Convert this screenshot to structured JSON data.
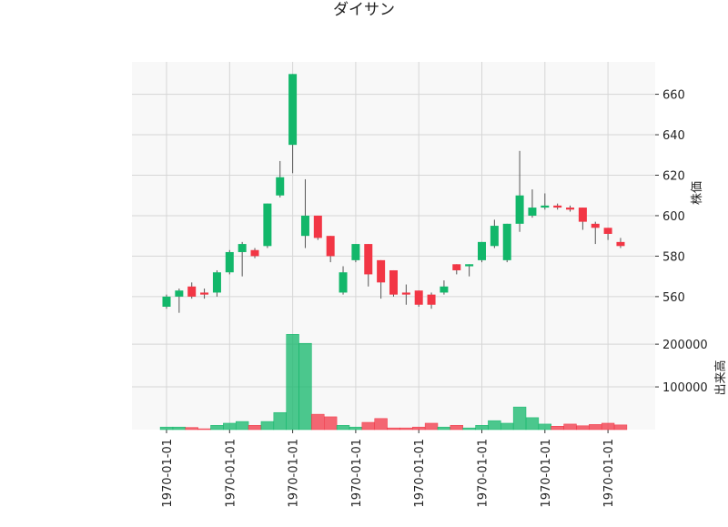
{
  "chart_data": {
    "type": "candlestick",
    "title": "ダイサン",
    "y_label": "株価",
    "y2_label": "出来高",
    "categories": [
      "1970-01-01",
      null,
      null,
      null,
      null,
      "1970-01-01",
      null,
      null,
      null,
      null,
      "1970-01-01",
      null,
      null,
      null,
      null,
      "1970-01-01",
      null,
      null,
      null,
      null,
      "1970-01-01",
      null,
      null,
      null,
      null,
      "1970-01-01",
      null,
      null,
      null,
      null,
      "1970-01-01",
      null,
      null,
      null,
      null,
      "1970-01-01",
      null
    ],
    "open": [
      555,
      560,
      565,
      562,
      562,
      572,
      582,
      583,
      585,
      610,
      635,
      590,
      600,
      590,
      562,
      578,
      586,
      578,
      573,
      562,
      563,
      561,
      562,
      576,
      575,
      578,
      585,
      578,
      596,
      600,
      604,
      605,
      604,
      604,
      596,
      594,
      587
    ],
    "high": [
      561,
      564,
      567,
      564,
      573,
      583,
      587,
      584,
      606,
      627,
      670,
      618,
      600,
      590,
      575,
      586,
      586,
      578,
      573,
      566,
      563,
      562,
      568,
      576,
      576,
      587,
      598,
      596,
      632,
      613,
      611,
      606,
      605,
      604,
      597,
      594,
      589
    ],
    "low": [
      554,
      552,
      559,
      559,
      560,
      571,
      570,
      579,
      584,
      609,
      621,
      584,
      588,
      577,
      561,
      577,
      565,
      559,
      560,
      556,
      555,
      554,
      561,
      571,
      570,
      577,
      584,
      577,
      592,
      599,
      603,
      603,
      602,
      593,
      586,
      588,
      584
    ],
    "close": [
      560,
      563,
      560,
      561,
      572,
      582,
      586,
      580,
      606,
      619,
      670,
      600,
      589,
      580,
      572,
      586,
      571,
      567,
      561,
      561,
      556,
      556,
      565,
      573,
      576,
      587,
      595,
      596,
      610,
      604,
      605,
      604,
      603,
      597,
      594,
      591,
      585
    ],
    "volume": [
      6000,
      6000,
      5000,
      2000,
      10000,
      15000,
      19000,
      10000,
      19000,
      40000,
      223000,
      202000,
      36000,
      30000,
      10000,
      6000,
      17000,
      26000,
      4000,
      4000,
      6000,
      15000,
      6000,
      10000,
      4000,
      10000,
      21000,
      15000,
      53000,
      28000,
      13000,
      8000,
      13000,
      9000,
      12000,
      15000,
      11000
    ],
    "ylim": [
      546,
      676
    ],
    "yticks": [
      560,
      580,
      600,
      620,
      640,
      660
    ],
    "y2lim": [
      0,
      245000
    ],
    "y2ticks": [
      100000,
      200000
    ],
    "up_color": "#12b76a",
    "down_color": "#f23645",
    "wick_color": "#555555",
    "grid": true
  }
}
